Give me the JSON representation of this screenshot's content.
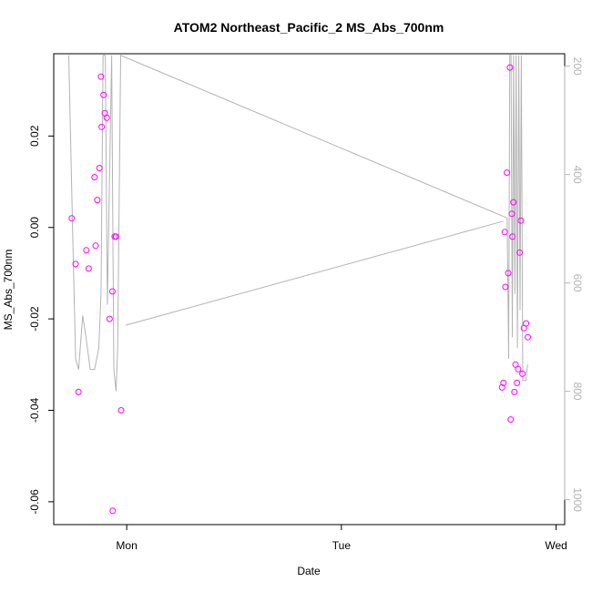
{
  "chart_data": {
    "type": "scatter",
    "title": "ATOM2 Northeast_Pacific_2 MS_Abs_700nm",
    "xlabel": "Date",
    "ylabel": "MS_Abs_700nm",
    "x_units": "days from Mon 00:00",
    "xlim": [
      -0.34,
      2.04
    ],
    "ylim": [
      -0.065,
      0.038
    ],
    "x_ticks": [
      {
        "value": 0,
        "label": "Mon"
      },
      {
        "value": 1,
        "label": "Tue"
      },
      {
        "value": 2,
        "label": "Wed"
      }
    ],
    "y_ticks": [
      {
        "value": -0.06,
        "label": "-0.06"
      },
      {
        "value": -0.04,
        "label": "-0.04"
      },
      {
        "value": -0.02,
        "label": "-0.02"
      },
      {
        "value": 0.0,
        "label": "0.00"
      },
      {
        "value": 0.02,
        "label": "0.02"
      }
    ],
    "y2_ticks": [
      {
        "value": 200,
        "label": "200"
      },
      {
        "value": 400,
        "label": "400"
      },
      {
        "value": 600,
        "label": "600"
      },
      {
        "value": 800,
        "label": "800"
      },
      {
        "value": 1000,
        "label": "1000"
      }
    ],
    "y2lim": [
      1046,
      177
    ],
    "grid": false,
    "colors": {
      "points": "#ff00ff",
      "line": "#b3b3b3",
      "axis": "#000000",
      "right_axis": "#b3b3b3"
    },
    "series": [
      {
        "type": "scatter",
        "marker": "open-circle",
        "x": [
          -0.256,
          -0.238,
          -0.225,
          -0.188,
          -0.177,
          -0.15,
          -0.145,
          -0.137,
          -0.127,
          -0.12,
          -0.117,
          -0.108,
          -0.102,
          -0.093,
          -0.08,
          -0.067,
          -0.065,
          -0.056,
          -0.05,
          -0.026,
          1.748,
          1.755,
          1.761,
          1.764,
          1.771,
          1.777,
          1.785,
          1.789,
          1.794,
          1.797,
          1.801,
          1.806,
          1.811,
          1.818,
          1.823,
          1.83,
          1.836,
          1.843,
          1.85,
          1.86,
          1.868
        ],
        "y": [
          0.002,
          -0.008,
          -0.036,
          -0.005,
          -0.009,
          0.011,
          -0.004,
          0.006,
          0.013,
          0.033,
          0.022,
          0.029,
          0.025,
          0.024,
          -0.02,
          -0.014,
          -0.062,
          -0.002,
          -0.002,
          -0.04,
          -0.035,
          -0.034,
          -0.001,
          -0.013,
          0.012,
          -0.01,
          0.035,
          -0.042,
          0.003,
          -0.002,
          0.0055,
          -0.036,
          -0.03,
          -0.034,
          -0.031,
          -0.0055,
          0.0015,
          -0.032,
          -0.022,
          -0.021,
          -0.024
        ]
      },
      {
        "type": "line",
        "axis": "right",
        "x": [
          -0.27,
          -0.252,
          -0.238,
          -0.224,
          -0.205,
          -0.19,
          -0.17,
          -0.15,
          -0.13,
          -0.12,
          -0.11,
          -0.1,
          -0.09,
          -0.07,
          -0.06,
          -0.05,
          -0.042,
          -0.028,
          1.772,
          1.779,
          1.784,
          1.79,
          1.796,
          1.802,
          1.808,
          1.814,
          1.82,
          1.826,
          1.832,
          1.838,
          1.845,
          1.86,
          1.867
        ],
        "y": [
          180,
          500,
          740,
          760,
          660,
          700,
          760,
          760,
          720,
          620,
          180,
          180,
          640,
          180,
          760,
          800,
          720,
          180,
          480,
          740,
          180,
          180,
          700,
          180,
          620,
          180,
          720,
          180,
          650,
          180,
          780,
          780,
          750
        ]
      },
      {
        "type": "line",
        "axis": "right",
        "x": [
          -0.005,
          1.755
        ],
        "y": [
          678,
          486
        ]
      }
    ]
  }
}
